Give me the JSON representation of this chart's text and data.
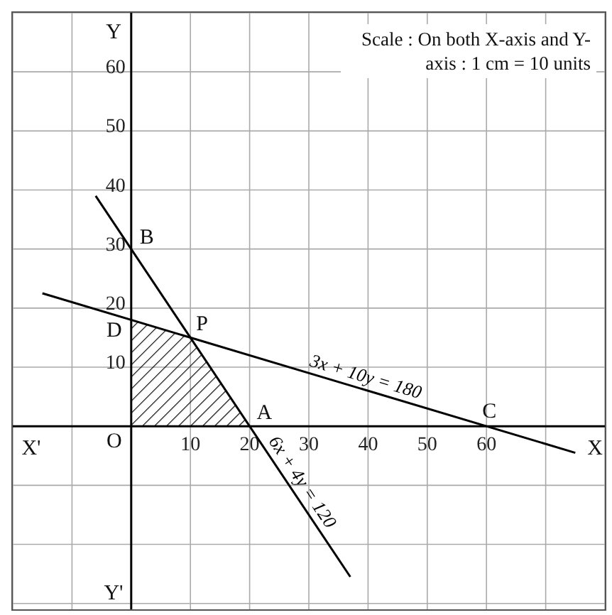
{
  "chart_data": {
    "type": "line",
    "xlim": [
      -20,
      80
    ],
    "ylim": [
      -31,
      70
    ],
    "xticks": [
      {
        "value": -20,
        "label": null
      },
      {
        "value": -10,
        "label": null
      },
      {
        "value": 0,
        "label": null
      },
      10,
      20,
      30,
      40,
      50,
      60,
      {
        "value": 70,
        "label": null
      },
      {
        "value": 80,
        "label": null
      }
    ],
    "yticks": [
      {
        "value": -30,
        "label": null
      },
      {
        "value": -20,
        "label": null
      },
      {
        "value": -10,
        "label": null
      },
      {
        "value": 0,
        "label": null
      },
      10,
      20,
      30,
      40,
      50,
      60,
      {
        "value": 70,
        "label": null
      }
    ],
    "grid": true,
    "legend": false,
    "marker": "none",
    "line_style": "solid",
    "series": [
      {
        "type": "area",
        "color": "#000000",
        "x": [
          0,
          10,
          20
        ],
        "values": [
          18,
          15,
          0
        ]
      },
      {
        "name": "3x + 10y = 180",
        "color": "#000000",
        "x": [
          -15,
          75
        ],
        "values": [
          22.5,
          -4.5
        ]
      },
      {
        "name": "6x + 4y = 120",
        "color": "#000000",
        "x": [
          -6,
          37
        ],
        "values": [
          39,
          -25.5
        ]
      }
    ],
    "annotations": [
      "Scale : On both X-axis and Y-axis : 1 cm = 10 units",
      {
        "text": "O",
        "x": 0,
        "y": 0
      },
      {
        "text": "B",
        "x": 0,
        "y": 30
      },
      {
        "text": "D",
        "x": 0,
        "y": 18
      },
      {
        "text": "P",
        "x": 10,
        "y": 15
      },
      {
        "text": "A",
        "x": 20,
        "y": 0
      },
      {
        "text": "C",
        "x": 60,
        "y": 0
      },
      "X'",
      "X",
      "Y",
      "Y'"
    ]
  }
}
